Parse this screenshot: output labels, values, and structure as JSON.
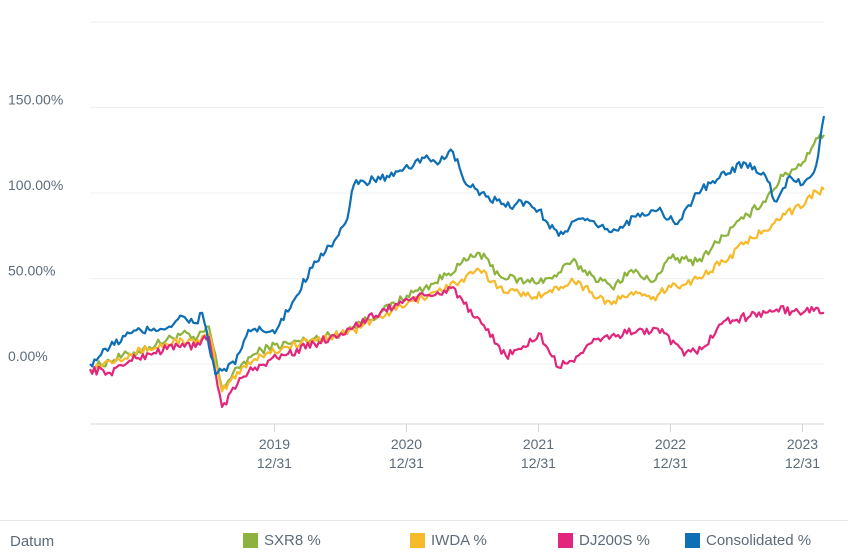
{
  "chart_data": {
    "type": "line",
    "y_ticks": [
      "150.00%",
      "100.00%",
      "50.00%",
      "0.00%"
    ],
    "y_tick_values": [
      150,
      100,
      50,
      0
    ],
    "ylim": [
      -35,
      200
    ],
    "x_ticks": [
      {
        "year": "2019",
        "date": "12/31",
        "x": 2019.997
      },
      {
        "year": "2020",
        "date": "12/31",
        "x": 2020.997
      },
      {
        "year": "2021",
        "date": "12/31",
        "x": 2021.997
      },
      {
        "year": "2022",
        "date": "12/31",
        "x": 2022.997
      },
      {
        "year": "2023",
        "date": "12/31",
        "x": 2023.997
      }
    ],
    "xlim": [
      2018.6,
      2024.16
    ],
    "grid": "horizontal",
    "legend_position": "bottom",
    "legend_title": "Datum",
    "series": [
      {
        "name": "SXR8 %",
        "color": "#8db33f",
        "points": [
          [
            2018.6,
            -3
          ],
          [
            2018.75,
            2
          ],
          [
            2018.9,
            6
          ],
          [
            2019.05,
            10
          ],
          [
            2019.3,
            18
          ],
          [
            2019.4,
            14
          ],
          [
            2019.5,
            22
          ],
          [
            2019.6,
            -14
          ],
          [
            2019.75,
            0
          ],
          [
            2019.85,
            6
          ],
          [
            2019.95,
            10
          ],
          [
            2020.1,
            12
          ],
          [
            2020.3,
            15
          ],
          [
            2020.5,
            18
          ],
          [
            2020.6,
            22
          ],
          [
            2020.8,
            30
          ],
          [
            2021.0,
            40
          ],
          [
            2021.2,
            47
          ],
          [
            2021.4,
            58
          ],
          [
            2021.55,
            65
          ],
          [
            2021.7,
            52
          ],
          [
            2021.9,
            48
          ],
          [
            2022.1,
            50
          ],
          [
            2022.25,
            60
          ],
          [
            2022.4,
            52
          ],
          [
            2022.55,
            45
          ],
          [
            2022.7,
            55
          ],
          [
            2022.85,
            48
          ],
          [
            2023.0,
            62
          ],
          [
            2023.2,
            60
          ],
          [
            2023.4,
            75
          ],
          [
            2023.55,
            85
          ],
          [
            2023.7,
            95
          ],
          [
            2023.85,
            110
          ],
          [
            2024.0,
            118
          ],
          [
            2024.1,
            132
          ],
          [
            2024.16,
            134
          ]
        ]
      },
      {
        "name": "IWDA %",
        "color": "#f6ba2a",
        "points": [
          [
            2018.6,
            -3
          ],
          [
            2018.75,
            2
          ],
          [
            2018.9,
            6
          ],
          [
            2019.05,
            9
          ],
          [
            2019.3,
            14
          ],
          [
            2019.4,
            12
          ],
          [
            2019.5,
            18
          ],
          [
            2019.6,
            -16
          ],
          [
            2019.75,
            -2
          ],
          [
            2019.85,
            3
          ],
          [
            2019.95,
            7
          ],
          [
            2020.1,
            10
          ],
          [
            2020.3,
            14
          ],
          [
            2020.5,
            18
          ],
          [
            2020.6,
            20
          ],
          [
            2020.8,
            28
          ],
          [
            2021.0,
            35
          ],
          [
            2021.2,
            42
          ],
          [
            2021.4,
            48
          ],
          [
            2021.55,
            55
          ],
          [
            2021.7,
            45
          ],
          [
            2021.9,
            40
          ],
          [
            2022.1,
            42
          ],
          [
            2022.25,
            50
          ],
          [
            2022.4,
            42
          ],
          [
            2022.55,
            35
          ],
          [
            2022.7,
            42
          ],
          [
            2022.85,
            38
          ],
          [
            2023.0,
            45
          ],
          [
            2023.2,
            50
          ],
          [
            2023.4,
            60
          ],
          [
            2023.55,
            70
          ],
          [
            2023.7,
            78
          ],
          [
            2023.85,
            88
          ],
          [
            2024.0,
            92
          ],
          [
            2024.1,
            101
          ],
          [
            2024.16,
            102
          ]
        ]
      },
      {
        "name": "DJ200S %",
        "color": "#e2267b",
        "points": [
          [
            2018.6,
            -3
          ],
          [
            2018.75,
            -5
          ],
          [
            2018.9,
            2
          ],
          [
            2019.05,
            6
          ],
          [
            2019.3,
            12
          ],
          [
            2019.4,
            10
          ],
          [
            2019.5,
            16
          ],
          [
            2019.6,
            -25
          ],
          [
            2019.75,
            -8
          ],
          [
            2019.85,
            -2
          ],
          [
            2019.95,
            2
          ],
          [
            2020.1,
            6
          ],
          [
            2020.3,
            12
          ],
          [
            2020.5,
            18
          ],
          [
            2020.6,
            22
          ],
          [
            2020.8,
            30
          ],
          [
            2021.0,
            38
          ],
          [
            2021.2,
            40
          ],
          [
            2021.35,
            45
          ],
          [
            2021.5,
            28
          ],
          [
            2021.6,
            20
          ],
          [
            2021.75,
            5
          ],
          [
            2021.9,
            10
          ],
          [
            2022.0,
            18
          ],
          [
            2022.15,
            -2
          ],
          [
            2022.3,
            5
          ],
          [
            2022.45,
            15
          ],
          [
            2022.6,
            17
          ],
          [
            2022.75,
            20
          ],
          [
            2022.95,
            18
          ],
          [
            2023.1,
            5
          ],
          [
            2023.25,
            10
          ],
          [
            2023.4,
            25
          ],
          [
            2023.6,
            28
          ],
          [
            2023.8,
            32
          ],
          [
            2024.0,
            30
          ],
          [
            2024.1,
            33
          ],
          [
            2024.16,
            30
          ]
        ]
      },
      {
        "name": "Consolidated %",
        "color": "#0f6fb5",
        "points": [
          [
            2018.6,
            0
          ],
          [
            2018.75,
            10
          ],
          [
            2018.9,
            18
          ],
          [
            2019.05,
            20
          ],
          [
            2019.2,
            22
          ],
          [
            2019.3,
            28
          ],
          [
            2019.4,
            24
          ],
          [
            2019.45,
            30
          ],
          [
            2019.55,
            -6
          ],
          [
            2019.7,
            0
          ],
          [
            2019.8,
            20
          ],
          [
            2019.9,
            20
          ],
          [
            2020.0,
            18
          ],
          [
            2020.15,
            38
          ],
          [
            2020.3,
            60
          ],
          [
            2020.45,
            72
          ],
          [
            2020.55,
            85
          ],
          [
            2020.6,
            105
          ],
          [
            2020.75,
            108
          ],
          [
            2020.9,
            110
          ],
          [
            2021.05,
            116
          ],
          [
            2021.15,
            122
          ],
          [
            2021.25,
            118
          ],
          [
            2021.35,
            124
          ],
          [
            2021.45,
            105
          ],
          [
            2021.6,
            98
          ],
          [
            2021.75,
            92
          ],
          [
            2021.9,
            95
          ],
          [
            2022.0,
            90
          ],
          [
            2022.15,
            75
          ],
          [
            2022.3,
            85
          ],
          [
            2022.45,
            80
          ],
          [
            2022.6,
            78
          ],
          [
            2022.75,
            88
          ],
          [
            2022.9,
            90
          ],
          [
            2023.05,
            82
          ],
          [
            2023.2,
            100
          ],
          [
            2023.35,
            108
          ],
          [
            2023.55,
            118
          ],
          [
            2023.7,
            112
          ],
          [
            2023.8,
            95
          ],
          [
            2023.9,
            110
          ],
          [
            2024.0,
            105
          ],
          [
            2024.1,
            116
          ],
          [
            2024.16,
            145
          ]
        ]
      }
    ]
  }
}
